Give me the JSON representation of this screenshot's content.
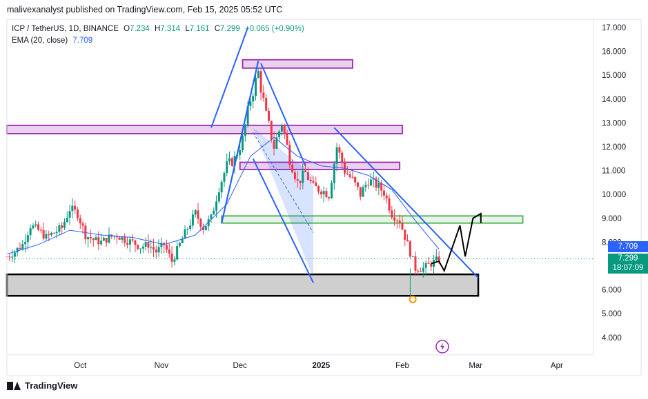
{
  "header": {
    "text": "malivexanalyst published on TradingView.com, Feb 15, 2025 05:52 UTC"
  },
  "legend": {
    "symbol": "ICP / TetherUS, 1D, BINANCE",
    "open_label": "O",
    "open": "7.234",
    "high_label": "H",
    "high": "7.314",
    "low_label": "L",
    "low": "7.161",
    "close_label": "C",
    "close": "7.299",
    "change": "+0.065 (+0.90%)",
    "ema_label": "EMA (20, close)",
    "ema_value": "7.709"
  },
  "price_badges": {
    "ema": {
      "value": "7.709",
      "color": "#2962ff"
    },
    "last": {
      "value": "7.299",
      "countdown": "18:07:09",
      "color": "#089981"
    }
  },
  "footer": {
    "brand": "TradingView"
  },
  "colors": {
    "up": "#089981",
    "down": "#f23645",
    "ema": "#2962ff",
    "zone_pink": "#9c27b0",
    "zone_green": "#4caf50",
    "support": "#000000"
  },
  "chart_data": {
    "type": "candlestick",
    "y_ticks": [
      "17.000",
      "16.000",
      "15.000",
      "14.000",
      "13.000",
      "12.000",
      "11.000",
      "10.000",
      "9.000",
      "8.000",
      "6.000",
      "5.000",
      "4.000"
    ],
    "ylim": [
      3.0,
      17.5
    ],
    "x_ticks": [
      "Oct",
      "Nov",
      "Dec",
      "2025",
      "Feb",
      "Mar",
      "Apr"
    ],
    "x_tick_dates": [
      "2024-10-01",
      "2024-11-01",
      "2024-12-01",
      "2025-01-01",
      "2025-02-01",
      "2025-03-01",
      "2025-04-01"
    ],
    "xlim": [
      "2024-09-03",
      "2025-04-15"
    ],
    "last_close": 7.299,
    "ema_last": 7.709,
    "closes_by_date": [
      [
        "2024-09-03",
        7.4
      ],
      [
        "2024-09-06",
        7.6
      ],
      [
        "2024-09-09",
        7.9
      ],
      [
        "2024-09-12",
        8.7
      ],
      [
        "2024-09-15",
        8.5
      ],
      [
        "2024-09-18",
        8.2
      ],
      [
        "2024-09-21",
        8.4
      ],
      [
        "2024-09-24",
        8.6
      ],
      [
        "2024-09-27",
        9.4
      ],
      [
        "2024-09-30",
        9.2
      ],
      [
        "2024-10-03",
        8.3
      ],
      [
        "2024-10-06",
        8.1
      ],
      [
        "2024-10-09",
        8.0
      ],
      [
        "2024-10-12",
        8.2
      ],
      [
        "2024-10-15",
        8.3
      ],
      [
        "2024-10-18",
        8.1
      ],
      [
        "2024-10-21",
        8.0
      ],
      [
        "2024-10-24",
        7.8
      ],
      [
        "2024-10-27",
        7.9
      ],
      [
        "2024-10-30",
        7.6
      ],
      [
        "2024-11-02",
        7.9
      ],
      [
        "2024-11-05",
        7.2
      ],
      [
        "2024-11-08",
        7.9
      ],
      [
        "2024-11-11",
        8.6
      ],
      [
        "2024-11-14",
        9.2
      ],
      [
        "2024-11-17",
        8.6
      ],
      [
        "2024-11-20",
        9.0
      ],
      [
        "2024-11-23",
        10.3
      ],
      [
        "2024-11-26",
        11.2
      ],
      [
        "2024-11-29",
        11.5
      ],
      [
        "2024-12-02",
        12.3
      ],
      [
        "2024-12-05",
        14.0
      ],
      [
        "2024-12-08",
        15.1
      ],
      [
        "2024-12-11",
        13.3
      ],
      [
        "2024-12-14",
        12.0
      ],
      [
        "2024-12-17",
        13.0
      ],
      [
        "2024-12-20",
        11.5
      ],
      [
        "2024-12-23",
        10.5
      ],
      [
        "2024-12-26",
        10.9
      ],
      [
        "2024-12-29",
        10.3
      ],
      [
        "2025-01-01",
        10.2
      ],
      [
        "2025-01-04",
        10.0
      ],
      [
        "2025-01-07",
        12.0
      ],
      [
        "2025-01-10",
        11.0
      ],
      [
        "2025-01-13",
        10.6
      ],
      [
        "2025-01-16",
        10.0
      ],
      [
        "2025-01-19",
        10.6
      ],
      [
        "2025-01-22",
        10.4
      ],
      [
        "2025-01-25",
        10.1
      ],
      [
        "2025-01-28",
        9.2
      ],
      [
        "2025-01-31",
        8.9
      ],
      [
        "2025-02-03",
        7.9
      ],
      [
        "2025-02-06",
        6.9
      ],
      [
        "2025-02-09",
        6.9
      ],
      [
        "2025-02-12",
        7.1
      ],
      [
        "2025-02-15",
        7.299
      ]
    ],
    "ema_by_date": [
      [
        "2024-09-03",
        7.5
      ],
      [
        "2024-09-15",
        7.9
      ],
      [
        "2024-09-27",
        8.5
      ],
      [
        "2024-10-09",
        8.3
      ],
      [
        "2024-10-21",
        8.2
      ],
      [
        "2024-11-02",
        7.9
      ],
      [
        "2024-11-14",
        8.3
      ],
      [
        "2024-11-26",
        9.6
      ],
      [
        "2024-12-05",
        11.6
      ],
      [
        "2024-12-14",
        12.4
      ],
      [
        "2024-12-23",
        11.6
      ],
      [
        "2025-01-01",
        11.2
      ],
      [
        "2025-01-10",
        11.1
      ],
      [
        "2025-01-19",
        10.8
      ],
      [
        "2025-01-28",
        10.2
      ],
      [
        "2025-02-06",
        8.9
      ],
      [
        "2025-02-15",
        7.709
      ]
    ],
    "zones": [
      {
        "kind": "resistance",
        "y": [
          15.3,
          15.65
        ],
        "x": [
          "2024-12-02",
          "2025-01-13"
        ],
        "color": "#9c27b0"
      },
      {
        "kind": "resistance",
        "y": [
          12.55,
          12.9
        ],
        "x": [
          "2024-09-03",
          "2025-02-01"
        ],
        "color": "#9c27b0"
      },
      {
        "kind": "resistance",
        "y": [
          11.05,
          11.35
        ],
        "x": [
          "2024-12-01",
          "2025-01-31"
        ],
        "color": "#9c27b0"
      },
      {
        "kind": "support",
        "y": [
          8.8,
          9.1
        ],
        "x": [
          "2024-11-24",
          "2025-03-19"
        ],
        "color": "#4caf50"
      },
      {
        "kind": "support",
        "y": [
          5.75,
          6.65
        ],
        "x": [
          "2024-09-03",
          "2025-03-02"
        ],
        "color": "#000000"
      }
    ],
    "trendlines": [
      {
        "from": [
          "2024-11-24",
          8.8
        ],
        "to": [
          "2024-12-08",
          15.6
        ],
        "color": "#2962ff"
      },
      {
        "from": [
          "2024-11-20",
          12.8
        ],
        "to": [
          "2024-12-04",
          17.0
        ],
        "color": "#2962ff"
      },
      {
        "from": [
          "2024-12-08",
          15.6
        ],
        "to": [
          "2024-11-24",
          8.8
        ],
        "color": "#2962ff"
      },
      {
        "from": [
          "2024-12-09",
          15.5
        ],
        "to": [
          "2024-12-26",
          11.2
        ],
        "color": "#2962ff"
      },
      {
        "from": [
          "2024-12-06",
          11.5
        ],
        "to": [
          "2024-12-29",
          6.3
        ],
        "color": "#2962ff"
      },
      {
        "from": [
          "2025-01-06",
          12.8
        ],
        "to": [
          "2025-03-02",
          6.5
        ],
        "color": "#2962ff"
      }
    ],
    "projection_path": [
      [
        "2025-02-12",
        7.1
      ],
      [
        "2025-02-15",
        7.2
      ],
      [
        "2025-02-17",
        6.8
      ],
      [
        "2025-02-23",
        8.7
      ],
      [
        "2025-02-25",
        7.4
      ],
      [
        "2025-02-28",
        9.0
      ],
      [
        "2025-03-03",
        9.2
      ],
      [
        "2025-03-03",
        8.8
      ]
    ],
    "annotation_circle": [
      "2025-02-05",
      5.6
    ]
  }
}
